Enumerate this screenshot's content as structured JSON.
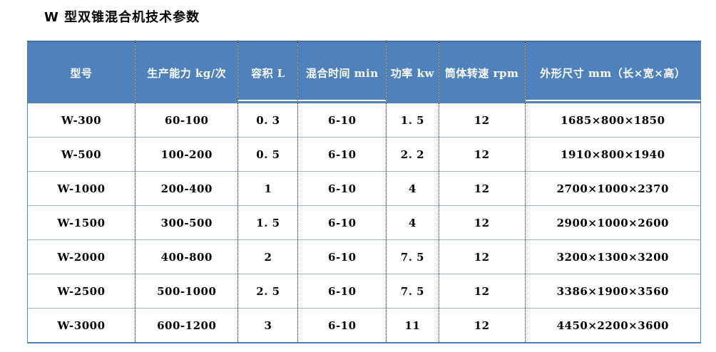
{
  "title": "W 型双锥混合机技术参数",
  "table": {
    "columns": [
      "型号",
      "生产能力 kg/次",
      "容积 L",
      "混合时间 min",
      "功率 kw",
      "筒体转速 rpm",
      "外形尺寸 mm（长×宽×高）"
    ],
    "rows": [
      [
        "W-300",
        "60-100",
        "0. 3",
        "6-10",
        "1. 5",
        "12",
        "1685×800×1850"
      ],
      [
        "W-500",
        "100-200",
        "0. 5",
        "6-10",
        "2. 2",
        "12",
        "1910×800×1940"
      ],
      [
        "W-1000",
        "200-400",
        "1",
        "6-10",
        "4",
        "12",
        "2700×1000×2370"
      ],
      [
        "W-1500",
        "300-500",
        "1. 5",
        "6-10",
        "4",
        "12",
        "2900×1000×2600"
      ],
      [
        "W-2000",
        "400-800",
        "2",
        "6-10",
        "7. 5",
        "12",
        "3200×1300×3200"
      ],
      [
        "W-2500",
        "500-1000",
        "2. 5",
        "6-10",
        "7. 5",
        "12",
        "3386×1900×3560"
      ],
      [
        "W-3000",
        "600-1200",
        "3",
        "6-10",
        "11",
        "12",
        "4450×2200×3600"
      ]
    ]
  },
  "colors": {
    "header_bg": "#4F81BD",
    "header_text": "#FFFFFF",
    "header_underline": "#FFFFFF",
    "row_divider": "#95B3D7",
    "column_divider": "#1A1A1A",
    "outer_border": "#4F81BD",
    "outer_border_top": "#41719C",
    "body_text": "#000000",
    "title_text": "#000000",
    "page_bg": "#FFFFFF"
  }
}
